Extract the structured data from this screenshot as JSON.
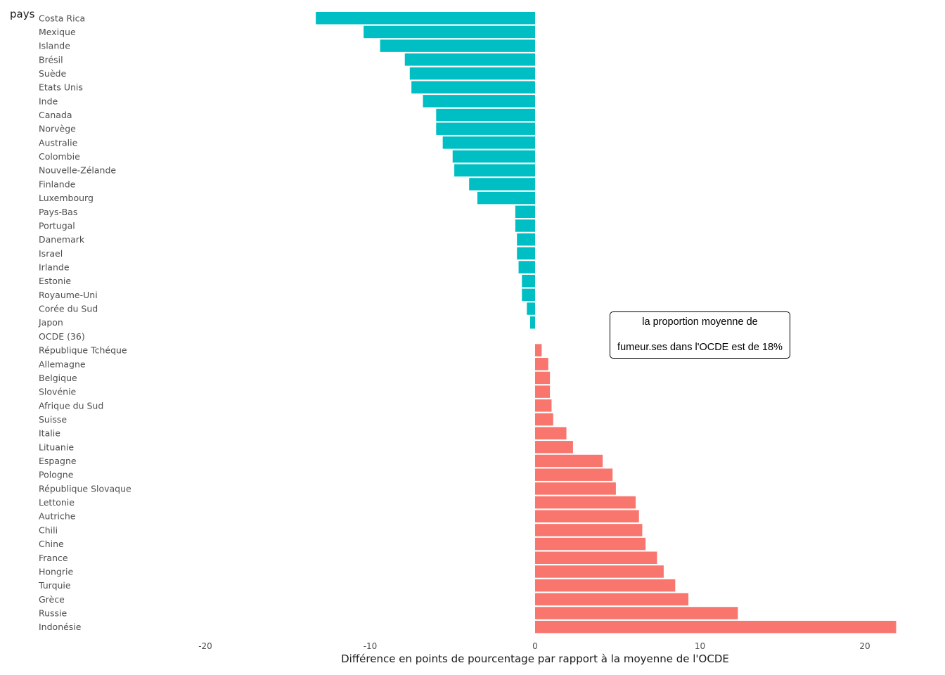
{
  "chart_data": {
    "type": "bar",
    "orientation": "horizontal",
    "ylabel": "pays",
    "xlabel": "Différence en points de pourcentage par rapport à la moyenne de l'OCDE",
    "xlim": [
      -20,
      22
    ],
    "xticks": [
      -20,
      -10,
      0,
      10,
      20
    ],
    "grid": false,
    "annotation": {
      "line1": "la proportion moyenne de",
      "line2": "fumeur.ses dans l'OCDE est de 18%"
    },
    "colors": {
      "negative": "#00BFC4",
      "positive": "#F8766D"
    },
    "categories": [
      "Costa Rica",
      "Mexique",
      "Islande",
      "Brésil",
      "Suède",
      "Etats Unis",
      "Inde",
      "Canada",
      "Norvège",
      "Australie",
      "Colombie",
      "Nouvelle-Zélande",
      "Finlande",
      "Luxembourg",
      "Pays-Bas",
      "Portugal",
      "Danemark",
      "Israel",
      "Irlande",
      "Estonie",
      "Royaume-Uni",
      "Corée du Sud",
      "Japon",
      "OCDE (36)",
      "République Tchéque",
      "Allemagne",
      "Belgique",
      "Slovénie",
      "Afrique du Sud",
      "Suisse",
      "Italie",
      "Lituanie",
      "Espagne",
      "Pologne",
      "République Slovaque",
      "Lettonie",
      "Autriche",
      "Chili",
      "Chine",
      "France",
      "Hongrie",
      "Turquie",
      "Grèce",
      "Russie",
      "Indonésie"
    ],
    "values": [
      -13.3,
      -10.4,
      -9.4,
      -7.9,
      -7.6,
      -7.5,
      -6.8,
      -6.0,
      -6.0,
      -5.6,
      -5.0,
      -4.9,
      -4.0,
      -3.5,
      -1.2,
      -1.2,
      -1.1,
      -1.1,
      -1.0,
      -0.8,
      -0.8,
      -0.5,
      -0.3,
      0,
      0.4,
      0.8,
      0.9,
      0.9,
      1.0,
      1.1,
      1.9,
      2.3,
      4.1,
      4.7,
      4.9,
      6.1,
      6.3,
      6.5,
      6.7,
      7.4,
      7.8,
      8.5,
      9.3,
      12.3,
      21.9
    ]
  }
}
